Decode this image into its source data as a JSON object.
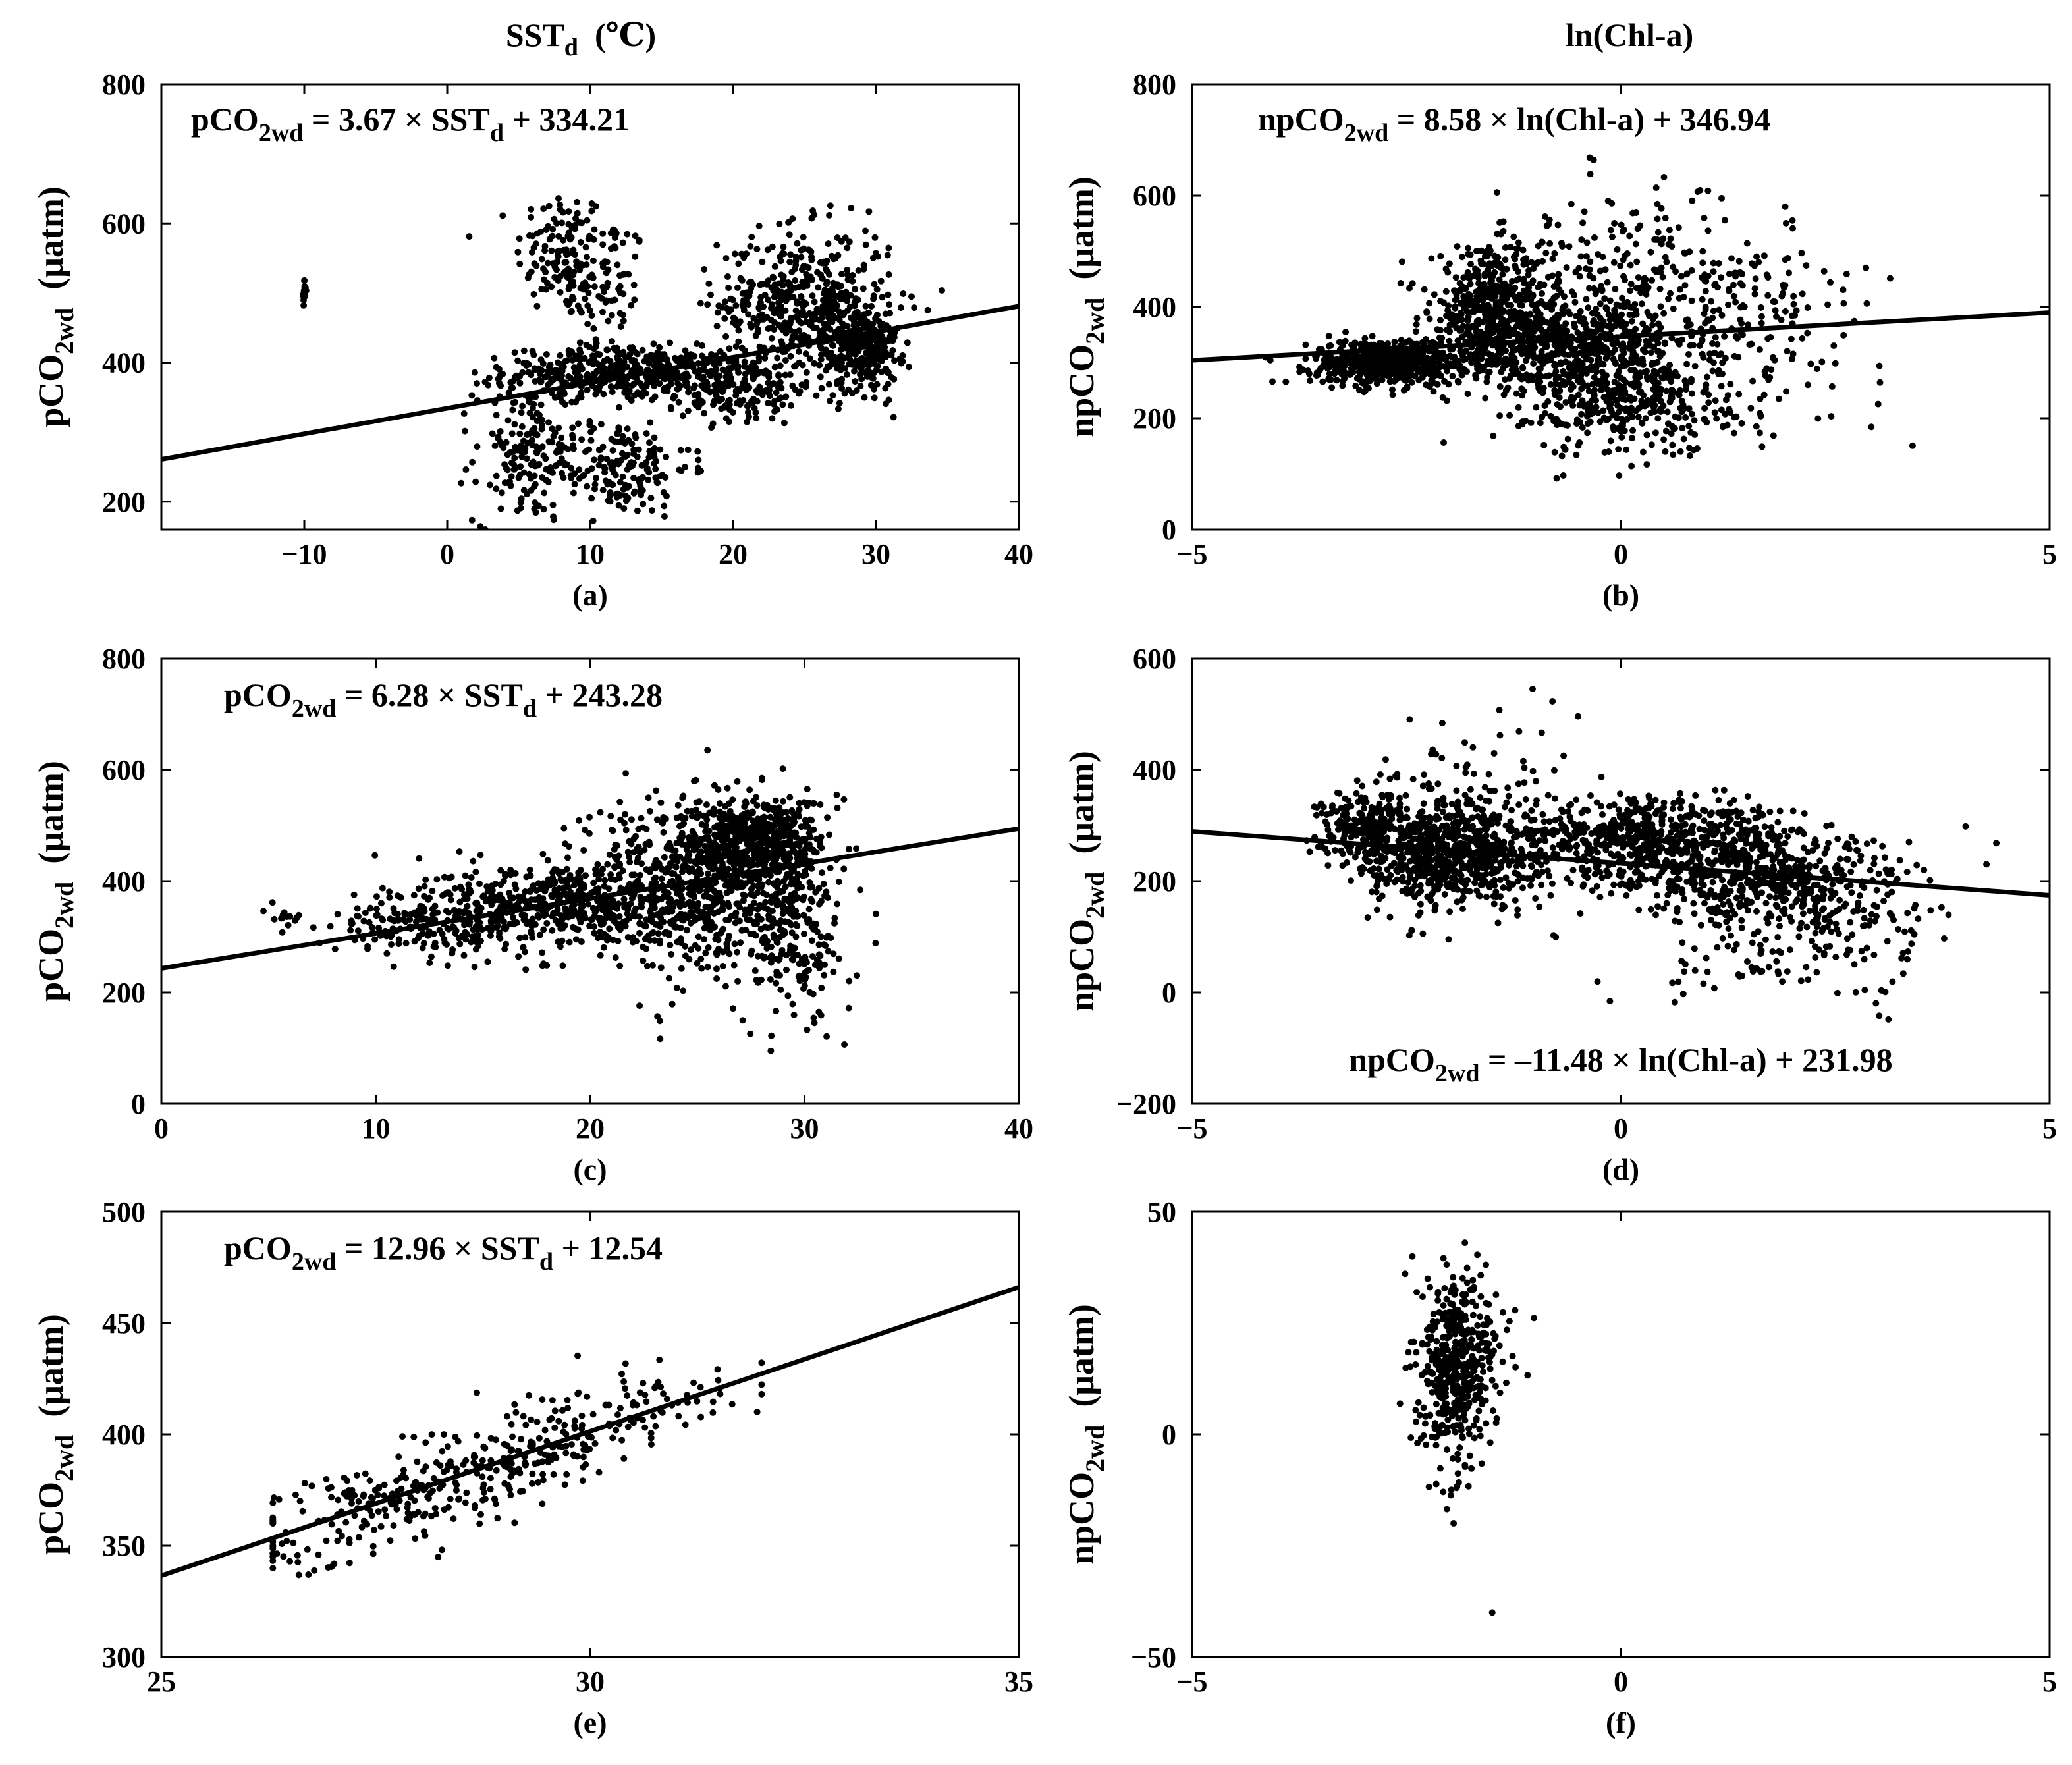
{
  "figure": {
    "col_titles": [
      {
        "main": "SST",
        "sub": "d",
        "suffix": "  (℃)"
      },
      {
        "main": "ln(Chl-a)",
        "sub": "",
        "suffix": ""
      }
    ]
  },
  "chart_data": [
    {
      "id": "a",
      "type": "scatter",
      "panel_label": "(a)",
      "xlim": [
        -20,
        40
      ],
      "ylim": [
        160,
        800
      ],
      "xticks": [
        -10,
        0,
        10,
        20,
        30,
        40
      ],
      "xtick_labels": [
        "−10",
        "0",
        "10",
        "20",
        "30",
        "40"
      ],
      "yticks": [
        200,
        400,
        600,
        800
      ],
      "ytick_labels": [
        "200",
        "400",
        "600",
        "800"
      ],
      "ylabel": {
        "main": "pCO",
        "sub": "2wd",
        "unit": "  (μatm)"
      },
      "equation": {
        "lhs": "pCO",
        "lhs_sub": "2wd",
        "mid": " = 3.67 × SST",
        "mid_sub": "d",
        "rhs": " + 334.21",
        "placement": "top-left"
      },
      "fit": {
        "slope": 3.67,
        "intercept": 334.21
      },
      "clusters": [
        {
          "cx": 8,
          "sx": 1.6,
          "cy": 560,
          "sy": 45,
          "n": 120
        },
        {
          "cx": 11,
          "sx": 1.5,
          "cy": 500,
          "sy": 60,
          "n": 90
        },
        {
          "cx": 12,
          "sx": 4,
          "cy": 385,
          "sy": 18,
          "n": 420
        },
        {
          "cx": 5.5,
          "sx": 1.8,
          "cy": 270,
          "sy": 50,
          "n": 160
        },
        {
          "cx": 12,
          "sx": 2.5,
          "cy": 250,
          "sy": 35,
          "n": 180
        },
        {
          "cx": 20,
          "sx": 2.5,
          "cy": 360,
          "sy": 25,
          "n": 160
        },
        {
          "cx": 25,
          "sx": 3,
          "cy": 480,
          "sy": 55,
          "n": 520
        },
        {
          "cx": 29,
          "sx": 1.3,
          "cy": 420,
          "sy": 30,
          "n": 260
        },
        {
          "cx": -10,
          "sx": 0.05,
          "cy": 500,
          "sy": 10,
          "n": 14
        }
      ]
    },
    {
      "id": "b",
      "type": "scatter",
      "panel_label": "(b)",
      "xlim": [
        -5,
        5
      ],
      "ylim": [
        0,
        800
      ],
      "xticks": [
        -5,
        0,
        5
      ],
      "xtick_labels": [
        "−5",
        "0",
        "5"
      ],
      "yticks": [
        0,
        200,
        400,
        600,
        800
      ],
      "ytick_labels": [
        "0",
        "200",
        "400",
        "600",
        "800"
      ],
      "ylabel": {
        "main": "npCO",
        "sub": "2wd",
        "unit": "  (μatm)"
      },
      "equation": {
        "lhs": "npCO",
        "lhs_sub": "2wd",
        "mid": " = 8.58 × ln(Chl-a) + 346.94",
        "mid_sub": "",
        "rhs": "",
        "placement": "top-left"
      },
      "fit": {
        "slope": 8.58,
        "intercept": 346.94
      },
      "clusters": [
        {
          "cx": -2.7,
          "sx": 0.45,
          "cy": 300,
          "sy": 20,
          "n": 600
        },
        {
          "cx": -1.5,
          "sx": 0.35,
          "cy": 390,
          "sy": 55,
          "n": 500
        },
        {
          "cx": -0.6,
          "sx": 0.6,
          "cy": 330,
          "sy": 40,
          "n": 450
        },
        {
          "cx": 0.1,
          "sx": 0.6,
          "cy": 230,
          "sy": 50,
          "n": 350
        },
        {
          "cx": 0.2,
          "sx": 0.9,
          "cy": 420,
          "sy": 90,
          "n": 320
        },
        {
          "cx": 1.3,
          "sx": 0.9,
          "cy": 350,
          "sy": 80,
          "n": 150
        }
      ]
    },
    {
      "id": "c",
      "type": "scatter",
      "panel_label": "(c)",
      "xlim": [
        0,
        40
      ],
      "ylim": [
        0,
        800
      ],
      "xticks": [
        0,
        10,
        20,
        30,
        40
      ],
      "xtick_labels": [
        "0",
        "10",
        "20",
        "30",
        "40"
      ],
      "yticks": [
        0,
        200,
        400,
        600,
        800
      ],
      "ytick_labels": [
        "0",
        "200",
        "400",
        "600",
        "800"
      ],
      "ylabel": {
        "main": "pCO",
        "sub": "2wd",
        "unit": "  (μatm)"
      },
      "equation": {
        "lhs": "pCO",
        "lhs_sub": "2wd",
        "mid": " = 6.28 × SST",
        "mid_sub": "d",
        "rhs": " + 243.28",
        "placement": "top-left"
      },
      "fit": {
        "slope": 6.28,
        "intercept": 243.28
      },
      "clusters": [
        {
          "cx": 13,
          "sx": 2.5,
          "cy": 330,
          "sy": 30,
          "n": 220
        },
        {
          "cx": 19,
          "sx": 2.8,
          "cy": 360,
          "sy": 40,
          "n": 450
        },
        {
          "cx": 25,
          "sx": 2.5,
          "cy": 400,
          "sy": 80,
          "n": 700
        },
        {
          "cx": 28,
          "sx": 1.5,
          "cy": 470,
          "sy": 40,
          "n": 450
        },
        {
          "cx": 29.5,
          "sx": 1.2,
          "cy": 300,
          "sy": 80,
          "n": 200
        },
        {
          "cx": 6,
          "sx": 0.7,
          "cy": 335,
          "sy": 8,
          "n": 12
        }
      ]
    },
    {
      "id": "d",
      "type": "scatter",
      "panel_label": "(d)",
      "xlim": [
        -5,
        5
      ],
      "ylim": [
        -200,
        600
      ],
      "xticks": [
        -5,
        0,
        5
      ],
      "xtick_labels": [
        "−5",
        "0",
        "5"
      ],
      "yticks": [
        -200,
        0,
        200,
        400,
        600
      ],
      "ytick_labels": [
        "−200",
        "0",
        "200",
        "400",
        "600"
      ],
      "ylabel": {
        "main": "npCO",
        "sub": "2wd",
        "unit": "  (μatm)"
      },
      "equation": {
        "lhs": "npCO",
        "lhs_sub": "2wd",
        "mid": " = –11.48 × ln(Chl-a) + 231.98",
        "mid_sub": "",
        "rhs": "",
        "placement": "bottom-center"
      },
      "fit": {
        "slope": -11.48,
        "intercept": 231.98
      },
      "clusters": [
        {
          "cx": -3.0,
          "sx": 0.25,
          "cy": 300,
          "sy": 30,
          "n": 200
        },
        {
          "cx": -2.0,
          "sx": 0.5,
          "cy": 250,
          "sy": 45,
          "n": 650
        },
        {
          "cx": -1.6,
          "sx": 0.7,
          "cy": 300,
          "sy": 90,
          "n": 200
        },
        {
          "cx": 0.5,
          "sx": 0.8,
          "cy": 270,
          "sy": 40,
          "n": 650
        },
        {
          "cx": 1.8,
          "sx": 0.8,
          "cy": 200,
          "sy": 40,
          "n": 400
        },
        {
          "cx": 2.2,
          "sx": 0.8,
          "cy": 100,
          "sy": 60,
          "n": 180
        }
      ]
    },
    {
      "id": "e",
      "type": "scatter",
      "panel_label": "(e)",
      "xlim": [
        25,
        35
      ],
      "ylim": [
        300,
        500
      ],
      "xticks": [
        25,
        30,
        35
      ],
      "xtick_labels": [
        "25",
        "30",
        "35"
      ],
      "yticks": [
        300,
        350,
        400,
        450,
        500
      ],
      "ytick_labels": [
        "300",
        "350",
        "400",
        "450",
        "500"
      ],
      "ylabel": {
        "main": "pCO",
        "sub": "2wd",
        "unit": "  (μatm)"
      },
      "equation": {
        "lhs": "pCO",
        "lhs_sub": "2wd",
        "mid": " = 12.96 × SST",
        "mid_sub": "d",
        "rhs": " + 12.54",
        "placement": "top-left"
      },
      "fit": {
        "slope": 12.96,
        "intercept": 12.54
      },
      "linear_cloud": {
        "x_mean": 28.7,
        "x_sd": 1.45,
        "x_min": 26.3,
        "x_max": 32.0,
        "noise_sd": 11,
        "n": 420
      }
    },
    {
      "id": "f",
      "type": "scatter",
      "panel_label": "(f)",
      "xlim": [
        -5,
        5
      ],
      "ylim": [
        -50,
        50
      ],
      "xticks": [
        -5,
        0,
        5
      ],
      "xtick_labels": [
        "−5",
        "0",
        "5"
      ],
      "yticks": [
        -50,
        0,
        50
      ],
      "ytick_labels": [
        "−50",
        "0",
        "50"
      ],
      "ylabel": {
        "main": "npCO",
        "sub": "2wd",
        "unit": "  (μatm)"
      },
      "clusters": [
        {
          "cx": -1.95,
          "sx": 0.2,
          "cy": 14,
          "sy": 11,
          "n": 420
        },
        {
          "cx": -1.6,
          "sx": 0.2,
          "cy": 22,
          "sy": 6,
          "n": 60
        }
      ],
      "outliers": [
        {
          "x": -1.5,
          "y": -40
        }
      ]
    }
  ]
}
